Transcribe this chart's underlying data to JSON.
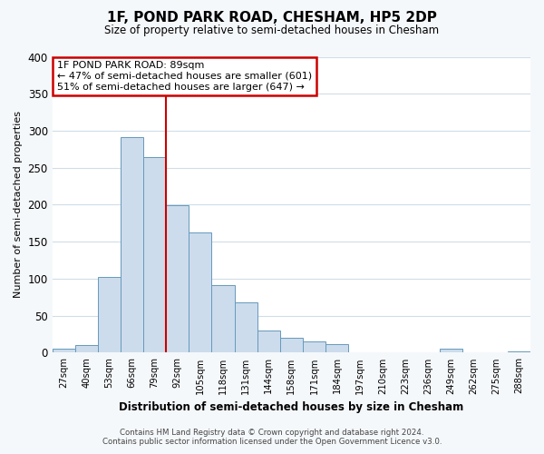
{
  "title": "1F, POND PARK ROAD, CHESHAM, HP5 2DP",
  "subtitle": "Size of property relative to semi-detached houses in Chesham",
  "xlabel": "Distribution of semi-detached houses by size in Chesham",
  "ylabel": "Number of semi-detached properties",
  "bin_labels": [
    "27sqm",
    "40sqm",
    "53sqm",
    "66sqm",
    "79sqm",
    "92sqm",
    "105sqm",
    "118sqm",
    "131sqm",
    "144sqm",
    "158sqm",
    "171sqm",
    "184sqm",
    "197sqm",
    "210sqm",
    "223sqm",
    "236sqm",
    "249sqm",
    "262sqm",
    "275sqm",
    "288sqm"
  ],
  "bar_heights": [
    5,
    10,
    103,
    292,
    265,
    199,
    163,
    91,
    68,
    30,
    20,
    15,
    12,
    0,
    0,
    0,
    0,
    5,
    0,
    0,
    2
  ],
  "bar_color": "#ccdcec",
  "bar_edge_color": "#6699bb",
  "vline_x": 5.0,
  "vline_color": "#cc0000",
  "annotation_title": "1F POND PARK ROAD: 89sqm",
  "annotation_line1": "← 47% of semi-detached houses are smaller (601)",
  "annotation_line2": "51% of semi-detached houses are larger (647) →",
  "annotation_box_color": "#ffffff",
  "annotation_box_edge": "#cc0000",
  "ylim": [
    0,
    400
  ],
  "yticks": [
    0,
    50,
    100,
    150,
    200,
    250,
    300,
    350,
    400
  ],
  "footer_line1": "Contains HM Land Registry data © Crown copyright and database right 2024.",
  "footer_line2": "Contains public sector information licensed under the Open Government Licence v3.0.",
  "bg_color": "#f5f8fb",
  "plot_bg_color": "#ffffff",
  "grid_color": "#d0dde8"
}
